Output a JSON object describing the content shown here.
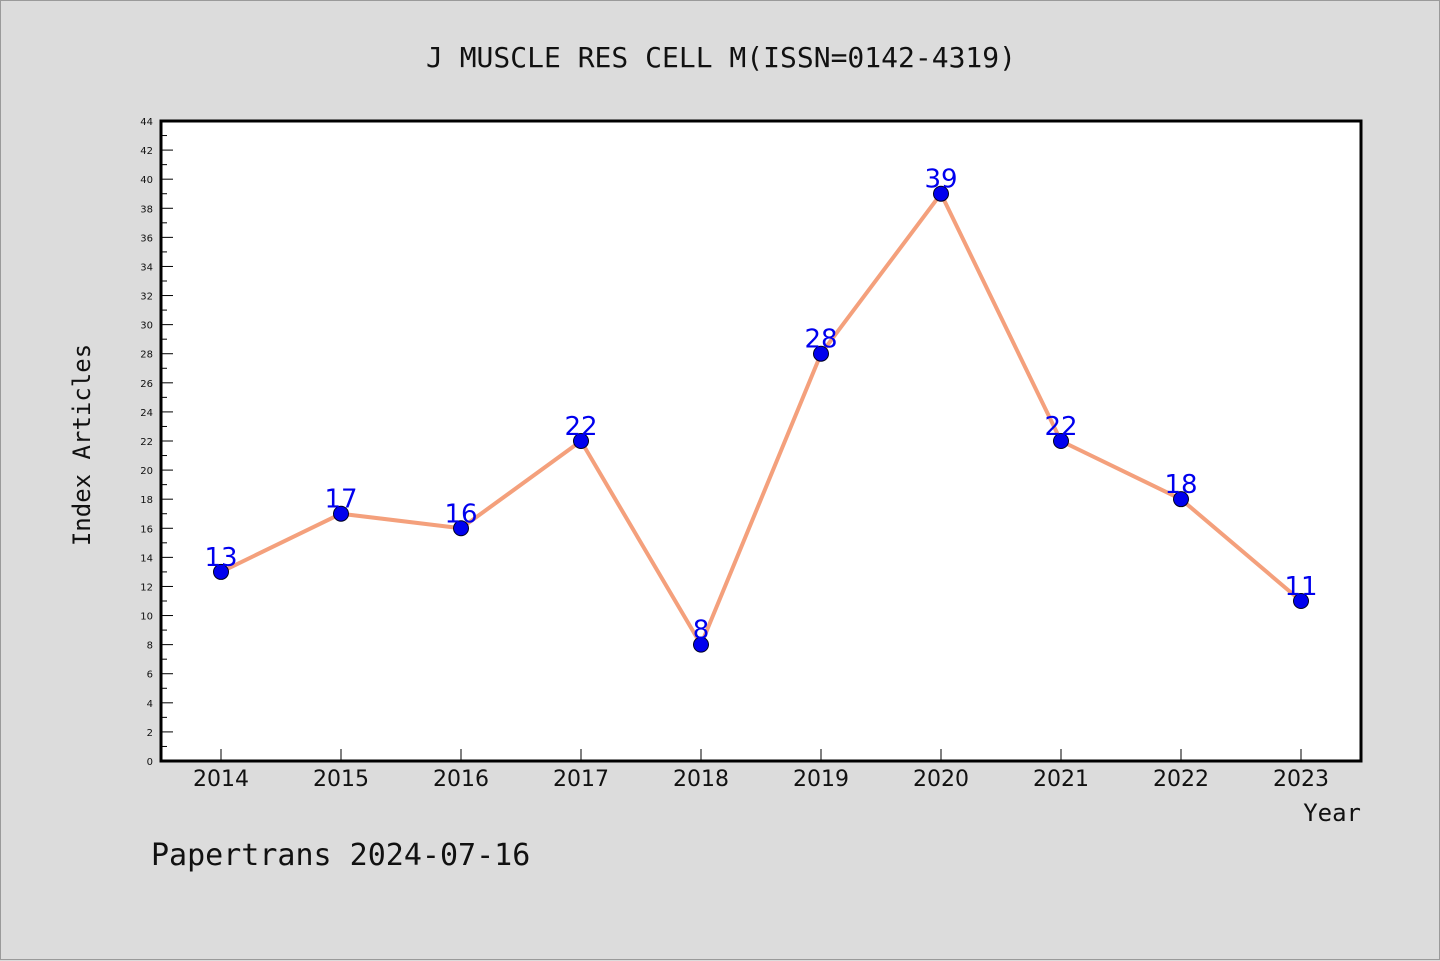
{
  "chart_data": {
    "type": "line",
    "title": "J MUSCLE RES CELL M(ISSN=0142-4319)",
    "xlabel": "Year",
    "ylabel": "Index Articles",
    "x": [
      "2014",
      "2015",
      "2016",
      "2017",
      "2018",
      "2019",
      "2020",
      "2021",
      "2022",
      "2023"
    ],
    "series": [
      {
        "values": [
          13,
          17,
          16,
          22,
          8,
          28,
          39,
          22,
          18,
          11
        ]
      }
    ],
    "ylim": [
      0,
      44
    ],
    "y_ticks": [
      0,
      2,
      4,
      6,
      8,
      10,
      12,
      14,
      16,
      18,
      20,
      22,
      24,
      26,
      28,
      30,
      32,
      34,
      36,
      38,
      40,
      42,
      44
    ],
    "data_labels_shown": true,
    "grid": false,
    "legend": "none",
    "colors": {
      "line": "#f4a07c",
      "marker": "#0000ee",
      "data_label": "#0000ee",
      "background": "#dcdcdc",
      "plot_area": "#ffffff"
    }
  },
  "footer": "Papertrans 2024-07-16"
}
